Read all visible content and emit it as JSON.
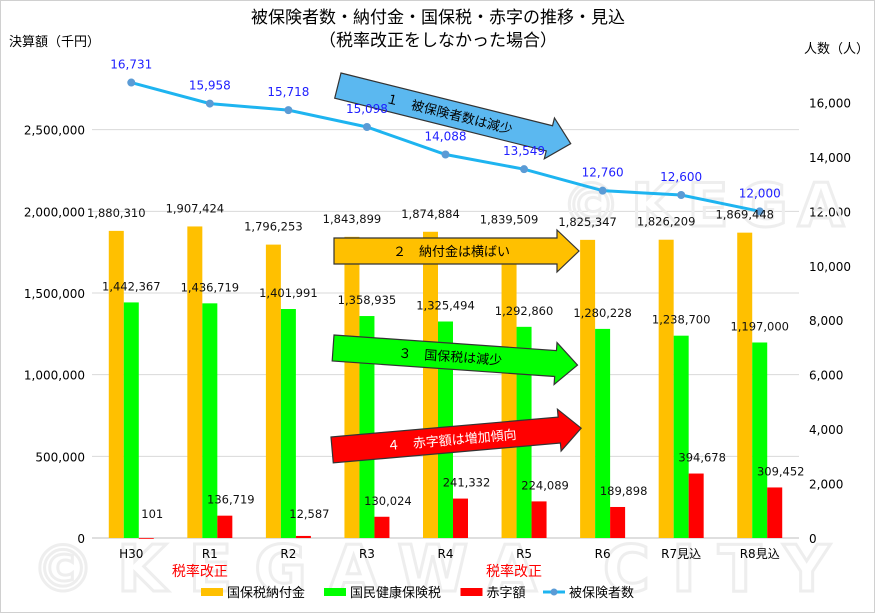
{
  "chart_data": {
    "type": "bar+line",
    "title": "被保険者数・納付金・国保税・赤字の推移・見込",
    "subtitle": "（税率改正をしなかった場合）",
    "ylabel_left": "決算額（千円）",
    "ylabel_right": "人数（人）",
    "ylim_left": [
      0,
      3000000
    ],
    "ylim_right": [
      0,
      18000
    ],
    "yticks_left": [
      "0",
      "500,000",
      "1,000,000",
      "1,500,000",
      "2,000,000",
      "2,500,000"
    ],
    "yticks_right": [
      "0",
      "2,000",
      "4,000",
      "6,000",
      "8,000",
      "10,000",
      "12,000",
      "14,000",
      "16,000"
    ],
    "grid": true,
    "legend_position": "bottom",
    "categories": [
      "H30",
      "R1",
      "R2",
      "R3",
      "R4",
      "R5",
      "R6",
      "R7見込",
      "R8見込"
    ],
    "series": [
      {
        "name": "国保税納付金",
        "type": "bar",
        "axis": "left",
        "color": "#FFC000",
        "values": [
          1880310,
          1907424,
          1796253,
          1843899,
          1874884,
          1839509,
          1825347,
          1826209,
          1869448
        ],
        "labels": [
          "1,880,310",
          "1,907,424",
          "1,796,253",
          "1,843,899",
          "1,874,884",
          "1,839,509",
          "1,825,347",
          "1,826,209",
          "1,869,448"
        ]
      },
      {
        "name": "国民健康保険税",
        "type": "bar",
        "axis": "left",
        "color": "#00FF00",
        "values": [
          1442367,
          1436719,
          1401991,
          1358935,
          1325494,
          1292860,
          1280228,
          1238700,
          1197000
        ],
        "labels": [
          "1,442,367",
          "1,436,719",
          "1,401,991",
          "1,358,935",
          "1,325,494",
          "1,292,860",
          "1,280,228",
          "1,238,700",
          "1,197,000"
        ]
      },
      {
        "name": "赤字額",
        "type": "bar",
        "axis": "left",
        "color": "#FF0000",
        "values": [
          101,
          136719,
          12587,
          130024,
          241332,
          224089,
          189898,
          394678,
          309452
        ],
        "labels": [
          "101",
          "136,719",
          "12,587",
          "130,024",
          "241,332",
          "224,089",
          "189,898",
          "394,678",
          "309,452"
        ]
      },
      {
        "name": "被保険者数",
        "type": "line",
        "axis": "right",
        "color": "#1EB4F0",
        "values": [
          16731,
          15958,
          15718,
          15098,
          14088,
          13549,
          12760,
          12600,
          12000
        ],
        "labels": [
          "16,731",
          "15,958",
          "15,718",
          "15,098",
          "14,088",
          "13,549",
          "12,760",
          "12,600",
          "12,000"
        ]
      }
    ],
    "annotations": [
      {
        "text": "税率改正",
        "category": "R1",
        "color": "#FF0000"
      },
      {
        "text": "税率改正",
        "category": "R5",
        "color": "#FF0000"
      },
      {
        "text": "１　被保険者数は減少",
        "color": "#5BB8F0"
      },
      {
        "text": "２　納付金は横ばい",
        "color": "#FFC000"
      },
      {
        "text": "３　国保税は減少",
        "color": "#00FF00"
      },
      {
        "text": "４　赤字額は増加傾向",
        "color": "#FF0000"
      }
    ]
  }
}
